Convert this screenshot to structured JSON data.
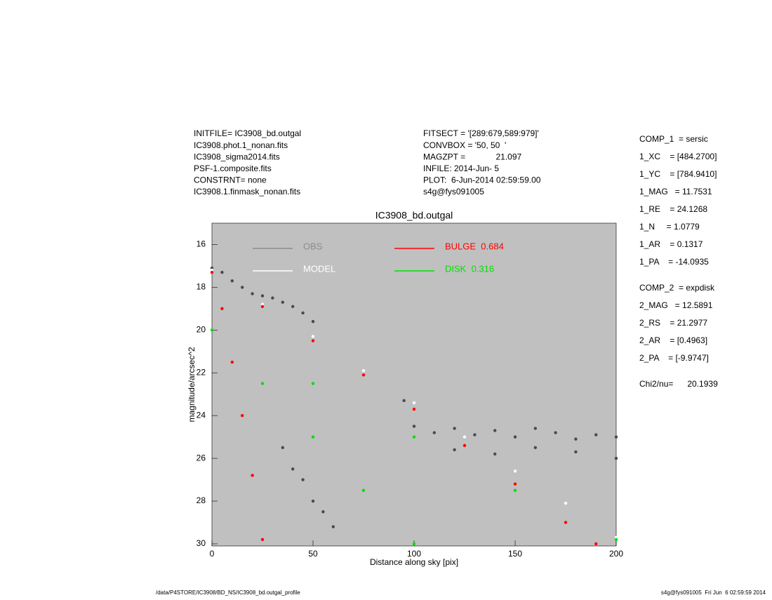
{
  "header": {
    "left": [
      "INITFILE= IC3908_bd.outgal",
      "IC3908.phot.1_nonan.fits",
      "IC3908_sigma2014.fits",
      "PSF-1.composite.fits",
      "CONSTRNT= none",
      "IC3908.1.finmask_nonan.fits"
    ],
    "middle": [
      "FITSECT = '[289:679,589:979]'",
      "CONVBOX = '50, 50  '",
      "MAGZPT =             21.097",
      "INFILE: 2014-Jun- 5",
      "PLOT:  6-Jun-2014 02:59:59.00",
      "s4g@fys091005"
    ]
  },
  "parameters": [
    [
      "COMP_1  = sersic",
      "1_XC    = [484.2700]",
      "1_YC    = [784.9410]",
      "1_MAG   = 11.7531",
      "1_RE    = 24.1268",
      "1_N     = 1.0779",
      "1_AR    = 0.1317",
      "1_PA    = -14.0935"
    ],
    [
      "COMP_2  = expdisk",
      "2_MAG   = 12.5891",
      "2_RS    = 21.2977",
      "2_AR    = [0.4963]",
      "2_PA    = [-9.9747]"
    ],
    [
      "Chi2/nu=      20.1939"
    ]
  ],
  "footer": {
    "left": "/data/P4STORE/IC3908/BD_NS/IC3908_bd.outgal_profile",
    "right": "s4g@fys091005  Fri Jun  6 02:59:59 2014"
  },
  "chart_data": {
    "type": "scatter",
    "title": "IC3908_bd.outgal",
    "x_label": "Distance along sky [pix]",
    "y_label": "magnitude/arcsec^2",
    "xlim": [
      0,
      200
    ],
    "xticks": [
      0,
      50,
      100,
      150,
      200
    ],
    "ylim": [
      30.1,
      15
    ],
    "yticks": [
      16,
      18,
      20,
      22,
      24,
      26,
      28,
      30
    ],
    "background": "#c0c0c0",
    "legend": "top",
    "series": [
      {
        "name": "OBS",
        "color": "#8c8c8c",
        "marker_color": "#4a4a4a",
        "x": [
          0,
          5,
          10,
          15,
          20,
          25,
          30,
          35,
          40,
          45,
          50,
          35,
          40,
          45,
          50,
          55,
          60,
          95,
          100,
          110,
          120,
          130,
          140,
          150,
          160,
          170,
          180,
          190,
          200,
          120,
          140,
          160,
          180,
          200
        ],
        "values": [
          17.1,
          17.3,
          17.7,
          18.0,
          18.3,
          18.4,
          18.5,
          18.7,
          18.9,
          19.2,
          19.6,
          25.5,
          26.5,
          27.0,
          28.0,
          28.5,
          29.2,
          23.3,
          24.5,
          24.8,
          24.6,
          24.9,
          24.7,
          25.0,
          24.6,
          24.8,
          25.1,
          24.9,
          25.0,
          25.6,
          25.8,
          25.5,
          25.7,
          26.0
        ]
      },
      {
        "name": "MODEL",
        "color": "#ffffff",
        "x": [
          0,
          25,
          50,
          75,
          100,
          125,
          150,
          175,
          200
        ],
        "values": [
          17.2,
          18.8,
          20.3,
          21.9,
          23.4,
          25.0,
          26.6,
          28.1,
          29.7
        ]
      },
      {
        "name": "BULGE  0.684",
        "color": "#ff0000",
        "x": [
          0,
          25,
          50,
          75,
          100,
          125,
          150,
          175,
          190,
          5,
          10,
          15,
          20,
          25
        ],
        "values": [
          17.3,
          18.9,
          20.5,
          22.1,
          23.7,
          25.4,
          27.2,
          29.0,
          30.0,
          19.0,
          21.5,
          24.0,
          26.8,
          29.8
        ]
      },
      {
        "name": "DISK  0.316",
        "color": "#00e000",
        "x": [
          0,
          50,
          100,
          150,
          200,
          25,
          50,
          75,
          100
        ],
        "values": [
          20.0,
          22.5,
          25.0,
          27.5,
          29.8,
          22.5,
          25.0,
          27.5,
          30.0
        ]
      }
    ]
  }
}
